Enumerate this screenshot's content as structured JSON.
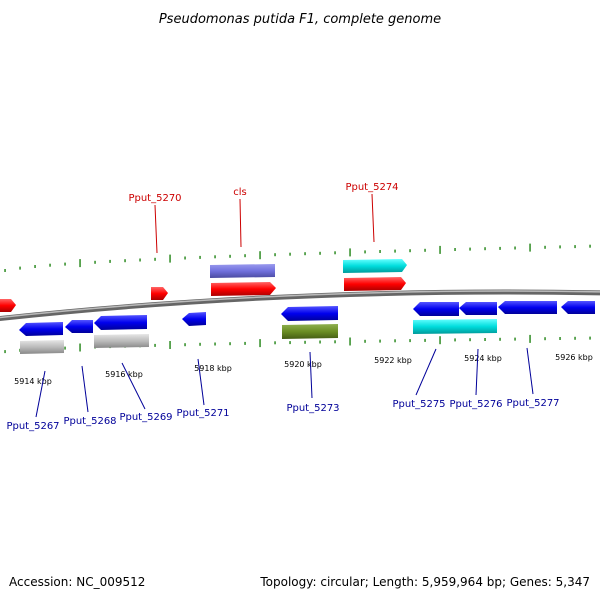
{
  "title": "Pseudomonas putida F1, complete genome",
  "footer": {
    "accession": "Accession: NC_009512",
    "stats": "Topology: circular; Length: 5,959,964 bp; Genes: 5,347"
  },
  "tick_labels": [
    "5914 kbp",
    "5916 kbp",
    "5918 kbp",
    "5920 kbp",
    "5922 kbp",
    "5924 kbp",
    "5926 kbp"
  ],
  "gene_labels": {
    "top": [
      "Pput_5270",
      "cls",
      "Pput_5274"
    ],
    "bottom": [
      "Pput_5267",
      "Pput_5268",
      "Pput_5269",
      "Pput_5271",
      "Pput_5273",
      "Pput_5275",
      "Pput_5276",
      "Pput_5277"
    ]
  },
  "colors": {
    "forward_cds": "#ff0000",
    "reverse_cds": "#0000ee",
    "rna": "#7070dd",
    "teal": "#00dddd",
    "olive": "#6b8e23",
    "gray": "#bbbbbb",
    "backbone": "#888888",
    "tick": "#2e8b22",
    "top_label": "#cc0000",
    "bottom_label": "#000099"
  }
}
